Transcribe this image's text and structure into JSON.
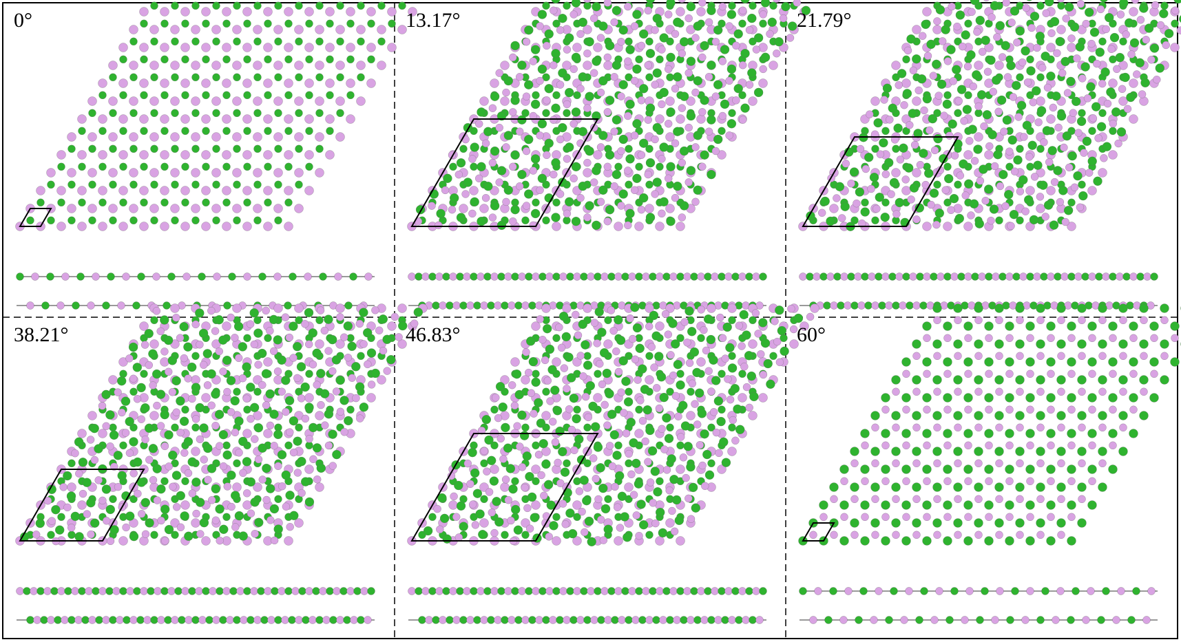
{
  "panels": [
    {
      "label": "0°"
    },
    {
      "label": "13.17°"
    },
    {
      "label": "21.79°"
    },
    {
      "label": "38.21°"
    },
    {
      "label": "46.83°"
    },
    {
      "label": "60°"
    }
  ]
}
